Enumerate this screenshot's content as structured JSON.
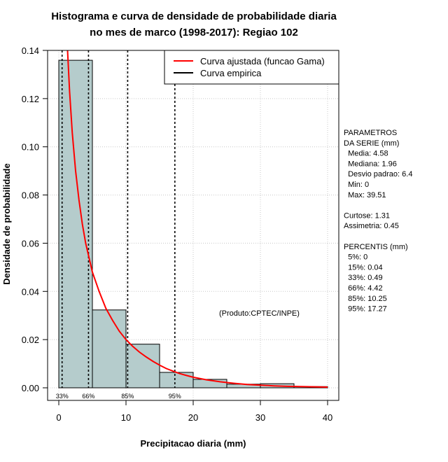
{
  "chart_data": {
    "type": "histogram",
    "title": [
      "Histograma e curva de densidade de probabilidade diaria",
      "no mes de marco (1998-2017): Regiao 102"
    ],
    "xlabel": "Precipitacao diaria (mm)",
    "ylabel": "Densidade de probabilidade",
    "xlim": [
      0,
      40
    ],
    "ylim": [
      0,
      0.14
    ],
    "x_ticks": [
      0,
      10,
      20,
      30,
      40
    ],
    "x_tick_labels": [
      "0",
      "10",
      "20",
      "30",
      "40"
    ],
    "y_ticks": [
      0.0,
      0.02,
      0.04,
      0.06,
      0.08,
      0.1,
      0.12,
      0.14
    ],
    "y_tick_labels": [
      "0.00",
      "0.02",
      "0.04",
      "0.06",
      "0.08",
      "0.10",
      "0.12",
      "0.14"
    ],
    "grid": true,
    "bars": [
      {
        "x0": 0,
        "x1": 5,
        "density": 0.1359
      },
      {
        "x0": 5,
        "x1": 10,
        "density": 0.0323
      },
      {
        "x0": 10,
        "x1": 15,
        "density": 0.0181
      },
      {
        "x0": 15,
        "x1": 20,
        "density": 0.0064
      },
      {
        "x0": 20,
        "x1": 25,
        "density": 0.0035
      },
      {
        "x0": 25,
        "x1": 30,
        "density": 0.0015
      },
      {
        "x0": 30,
        "x1": 35,
        "density": 0.0017
      },
      {
        "x0": 35,
        "x1": 40,
        "density": 0.0005
      }
    ],
    "fitted_curve": {
      "name": "Curva ajustada (funcao Gama)",
      "color": "#ff0000",
      "x": [
        1.3,
        1.6,
        2,
        2.5,
        3,
        3.5,
        4,
        4.5,
        5,
        6,
        7,
        8,
        9,
        10,
        11,
        12,
        13,
        14,
        15,
        16,
        17,
        18,
        19,
        20,
        22,
        24,
        26,
        28,
        30,
        32,
        34,
        36,
        38,
        40
      ],
      "y": [
        0.14,
        0.123,
        0.106,
        0.09,
        0.078,
        0.068,
        0.06,
        0.054,
        0.048,
        0.04,
        0.033,
        0.028,
        0.0235,
        0.02,
        0.0172,
        0.0148,
        0.0128,
        0.011,
        0.0094,
        0.008,
        0.0069,
        0.0059,
        0.0051,
        0.0044,
        0.0033,
        0.0025,
        0.0019,
        0.0014,
        0.0011,
        0.0008,
        0.0006,
        0.0005,
        0.0004,
        0.0003
      ]
    },
    "empirical_curve": {
      "name": "Curva empirica",
      "color": "#000000"
    },
    "percentile_lines": [
      {
        "label": "33%",
        "value": 0.49
      },
      {
        "label": "66%",
        "value": 4.42
      },
      {
        "label": "85%",
        "value": 10.25
      },
      {
        "label": "95%",
        "value": 17.27
      }
    ],
    "bar_color": "#b5cccc",
    "legend_position": "top-right",
    "annotation": "(Produto:CPTEC/INPE)",
    "stats_panel": [
      "PARAMETROS",
      "DA SERIE (mm)",
      "  Media: 4.58",
      "  Mediana: 1.96",
      "  Desvio padrao: 6.4",
      "  Min: 0",
      "  Max: 39.51",
      "",
      "Curtose: 1.31",
      "Assimetria: 0.45",
      "",
      "PERCENTIS (mm)",
      "  5%: 0",
      "  15%: 0.04",
      "  33%: 0.49",
      "  66%: 4.42",
      "  85%: 10.25",
      "  95%: 17.27"
    ]
  }
}
